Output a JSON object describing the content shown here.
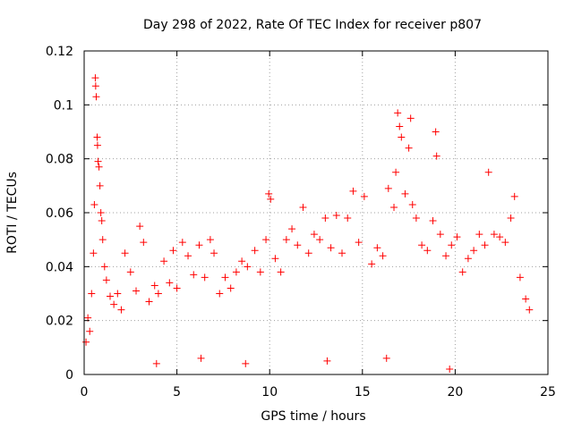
{
  "chart_data": {
    "type": "scatter",
    "title": "Day 298 of 2022, Rate Of TEC Index for receiver p807",
    "xlabel": "GPS time / hours",
    "ylabel": "ROTI / TECUs",
    "xlim": [
      0,
      24
    ],
    "ylim": [
      0,
      0.12
    ],
    "xticks": [
      0,
      5,
      10,
      15,
      20,
      25
    ],
    "xtick_labels": [
      "0",
      "5",
      "10",
      "15",
      "20",
      "25"
    ],
    "yticks": [
      0,
      0.02,
      0.04,
      0.06,
      0.08,
      0.1,
      0.12
    ],
    "ytick_labels": [
      "0",
      "0.02",
      "0.04",
      "0.06",
      "0.08",
      "0.1",
      "0.12"
    ],
    "grid": true,
    "marker": "+",
    "marker_color": "#ff0000",
    "series": [
      {
        "name": "ROTI p807",
        "points": [
          [
            0.1,
            0.012
          ],
          [
            0.2,
            0.021
          ],
          [
            0.3,
            0.016
          ],
          [
            0.4,
            0.03
          ],
          [
            0.5,
            0.045
          ],
          [
            0.55,
            0.063
          ],
          [
            0.6,
            0.11
          ],
          [
            0.62,
            0.107
          ],
          [
            0.65,
            0.103
          ],
          [
            0.7,
            0.088
          ],
          [
            0.72,
            0.085
          ],
          [
            0.75,
            0.079
          ],
          [
            0.8,
            0.077
          ],
          [
            0.85,
            0.07
          ],
          [
            0.9,
            0.06
          ],
          [
            0.95,
            0.057
          ],
          [
            1.0,
            0.05
          ],
          [
            1.1,
            0.04
          ],
          [
            1.2,
            0.035
          ],
          [
            1.4,
            0.029
          ],
          [
            1.6,
            0.026
          ],
          [
            1.8,
            0.03
          ],
          [
            2.0,
            0.024
          ],
          [
            2.2,
            0.045
          ],
          [
            2.5,
            0.038
          ],
          [
            2.8,
            0.031
          ],
          [
            3.0,
            0.055
          ],
          [
            3.2,
            0.049
          ],
          [
            3.5,
            0.027
          ],
          [
            3.8,
            0.033
          ],
          [
            4.0,
            0.03
          ],
          [
            4.3,
            0.042
          ],
          [
            4.6,
            0.034
          ],
          [
            4.8,
            0.046
          ],
          [
            5.0,
            0.032
          ],
          [
            5.3,
            0.049
          ],
          [
            5.6,
            0.044
          ],
          [
            5.9,
            0.037
          ],
          [
            6.2,
            0.048
          ],
          [
            6.5,
            0.036
          ],
          [
            6.8,
            0.05
          ],
          [
            7.0,
            0.045
          ],
          [
            7.3,
            0.03
          ],
          [
            7.6,
            0.036
          ],
          [
            7.9,
            0.032
          ],
          [
            8.2,
            0.038
          ],
          [
            8.5,
            0.042
          ],
          [
            8.8,
            0.04
          ],
          [
            9.2,
            0.046
          ],
          [
            9.5,
            0.038
          ],
          [
            9.8,
            0.05
          ],
          [
            9.95,
            0.067
          ],
          [
            10.05,
            0.065
          ],
          [
            10.3,
            0.043
          ],
          [
            10.6,
            0.038
          ],
          [
            10.9,
            0.05
          ],
          [
            11.2,
            0.054
          ],
          [
            11.5,
            0.048
          ],
          [
            11.8,
            0.062
          ],
          [
            12.1,
            0.045
          ],
          [
            12.4,
            0.052
          ],
          [
            12.7,
            0.05
          ],
          [
            13.0,
            0.058
          ],
          [
            13.3,
            0.047
          ],
          [
            13.6,
            0.059
          ],
          [
            13.9,
            0.045
          ],
          [
            14.2,
            0.058
          ],
          [
            14.5,
            0.068
          ],
          [
            14.8,
            0.049
          ],
          [
            15.1,
            0.066
          ],
          [
            15.5,
            0.041
          ],
          [
            15.8,
            0.047
          ],
          [
            16.1,
            0.044
          ],
          [
            16.4,
            0.069
          ],
          [
            16.7,
            0.062
          ],
          [
            16.8,
            0.075
          ],
          [
            16.9,
            0.097
          ],
          [
            17.0,
            0.092
          ],
          [
            17.1,
            0.088
          ],
          [
            17.3,
            0.067
          ],
          [
            17.5,
            0.084
          ],
          [
            17.6,
            0.095
          ],
          [
            17.7,
            0.063
          ],
          [
            17.9,
            0.058
          ],
          [
            18.2,
            0.048
          ],
          [
            18.5,
            0.046
          ],
          [
            18.8,
            0.057
          ],
          [
            18.95,
            0.09
          ],
          [
            19.0,
            0.081
          ],
          [
            19.2,
            0.052
          ],
          [
            19.5,
            0.044
          ],
          [
            19.8,
            0.048
          ],
          [
            20.1,
            0.051
          ],
          [
            20.4,
            0.038
          ],
          [
            20.7,
            0.043
          ],
          [
            21.0,
            0.046
          ],
          [
            21.3,
            0.052
          ],
          [
            21.6,
            0.048
          ],
          [
            21.8,
            0.075
          ],
          [
            22.1,
            0.052
          ],
          [
            22.4,
            0.051
          ],
          [
            22.7,
            0.049
          ],
          [
            23.0,
            0.058
          ],
          [
            23.2,
            0.066
          ],
          [
            23.5,
            0.036
          ],
          [
            23.8,
            0.028
          ],
          [
            24.0,
            0.024
          ],
          [
            3.9,
            0.004
          ],
          [
            8.7,
            0.004
          ],
          [
            19.7,
            0.002
          ],
          [
            13.1,
            0.005
          ],
          [
            6.3,
            0.006
          ],
          [
            16.3,
            0.006
          ]
        ]
      }
    ]
  }
}
